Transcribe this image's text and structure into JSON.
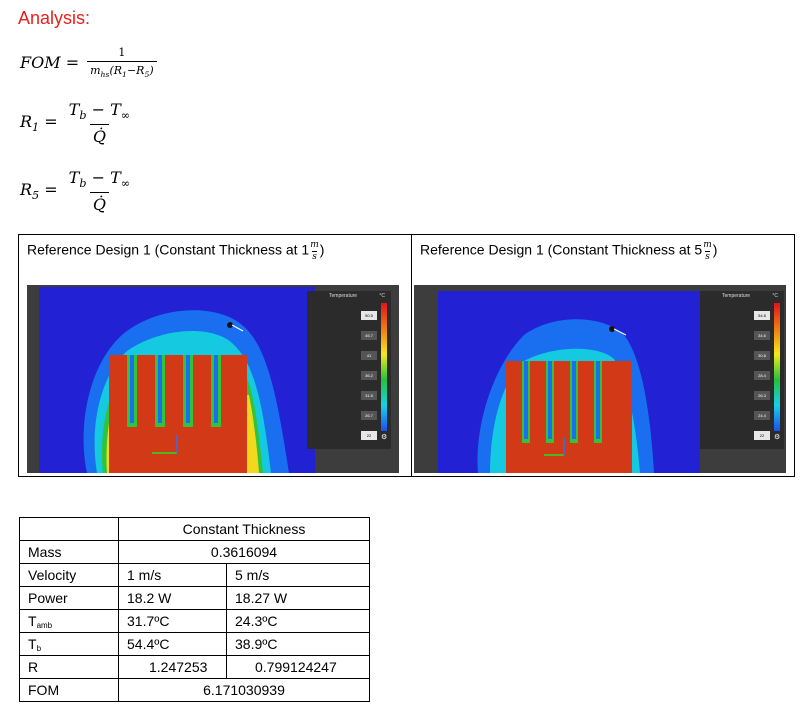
{
  "heading": "Analysis:",
  "equations": {
    "fom_lhs": "FOM",
    "fom_num": "1",
    "r1_lhs": "R",
    "r1_sub": "1",
    "r5_lhs": "R",
    "r5_sub": "5",
    "frac_num": "T",
    "frac_num_sub": "b",
    "frac_minus": " − T",
    "frac_inf": "∞",
    "frac_den": "Q̇"
  },
  "reference_designs": [
    {
      "title": "Reference Design 1 (Constant Thickness at 1",
      "velocity_num": "m",
      "velocity_den": "s",
      "close": ")",
      "legend": {
        "title": "Temperature",
        "unit": "°C",
        "ticks": [
          "50.5",
          "45.7",
          "41",
          "36.2",
          "31.5",
          "26.7",
          "22"
        ]
      }
    },
    {
      "title": "Reference Design 1 (Constant Thickness at 5",
      "velocity_num": "m",
      "velocity_den": "s",
      "close": ")",
      "legend": {
        "title": "Temperature",
        "unit": "°C",
        "ticks": [
          "54.8",
          "34.6",
          "30.8",
          "28.4",
          "26.3",
          "24.4",
          "22"
        ]
      }
    }
  ],
  "table": {
    "header": "Constant Thickness",
    "rows": [
      {
        "label": "Mass",
        "merged": "0.3616094"
      },
      {
        "label": "Velocity",
        "v1": "1 m/s",
        "v2": "5 m/s"
      },
      {
        "label": "Power",
        "v1": "18.2 W",
        "v2": "18.27 W"
      },
      {
        "label": "T",
        "label_sub": "amb",
        "v1": "31.7ºC",
        "v2": "24.3ºC"
      },
      {
        "label": "T",
        "label_sub": "b",
        "v1": "54.4ºC",
        "v2": "38.9ºC"
      },
      {
        "label": "R",
        "v1": "1.247253",
        "v2": "0.799124247"
      },
      {
        "label": "FOM",
        "merged": "6.171030939"
      }
    ]
  },
  "colors": {
    "heading": "#e8211c",
    "sim_bg": "#2222d4",
    "hot": "#d23a17"
  }
}
